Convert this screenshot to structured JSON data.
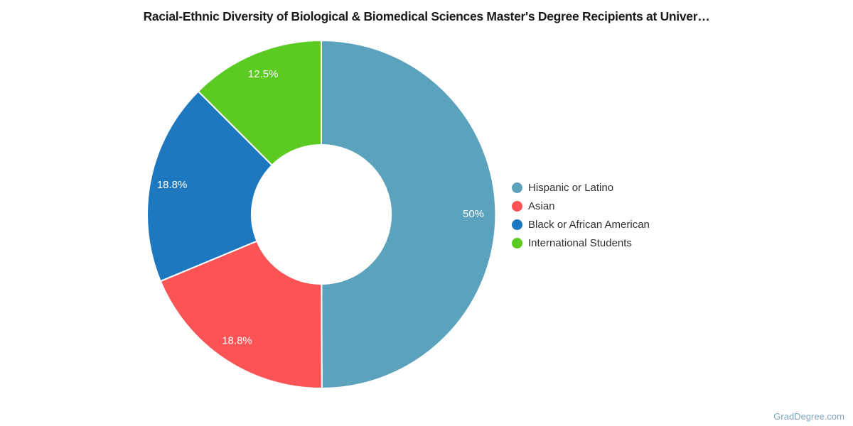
{
  "title": "Racial-Ethnic Diversity of Biological & Biomedical Sciences Master's Degree Recipients at Univer…",
  "watermark": "GradDegree.com",
  "chart_data": {
    "type": "pie",
    "subtype": "donut",
    "title": "Racial-Ethnic Diversity of Biological & Biomedical Sciences Master's Degree Recipients at Univer…",
    "categories": [
      "Hispanic or Latino",
      "Asian",
      "Black or African American",
      "International Students"
    ],
    "values": [
      50,
      18.8,
      18.8,
      12.5
    ],
    "percent_labels": [
      "50%",
      "18.8%",
      "18.8%",
      "12.5%"
    ],
    "colors": [
      "#5ba2bc",
      "#fc5456",
      "#1e78c0",
      "#5bcb22"
    ],
    "slice_label_color": "#ffffff",
    "start_angle_deg": 0,
    "direction": "clockwise",
    "inner_radius_ratio": 0.4,
    "legend_position": "right",
    "background_color": "#ffffff"
  }
}
